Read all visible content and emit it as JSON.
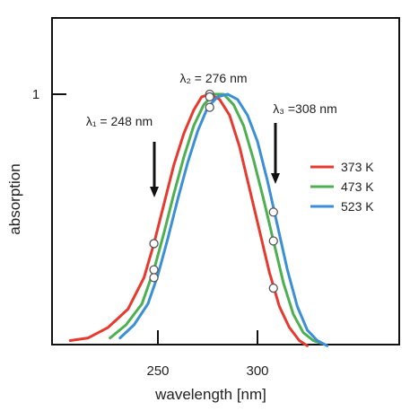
{
  "chart_data": {
    "type": "line",
    "xlabel": "wavelength [nm]",
    "ylabel": "absorption",
    "xlim": [
      200,
      360
    ],
    "ylim": [
      0,
      1.2
    ],
    "x_ticks": [
      250,
      300
    ],
    "y_ticks": [
      {
        "value": 1,
        "label": "1"
      }
    ],
    "grid": false,
    "legend_position": "right",
    "series": [
      {
        "name": "373 K",
        "color": "#e8392f",
        "points": [
          [
            206,
            0.06
          ],
          [
            215,
            0.07
          ],
          [
            225,
            0.11
          ],
          [
            235,
            0.18
          ],
          [
            243,
            0.3
          ],
          [
            248,
            0.43
          ],
          [
            253,
            0.58
          ],
          [
            258,
            0.73
          ],
          [
            263,
            0.85
          ],
          [
            268,
            0.94
          ],
          [
            272,
            0.99
          ],
          [
            276,
            1.0
          ],
          [
            281,
            0.98
          ],
          [
            286,
            0.92
          ],
          [
            291,
            0.8
          ],
          [
            296,
            0.64
          ],
          [
            301,
            0.48
          ],
          [
            306,
            0.32
          ],
          [
            311,
            0.19
          ],
          [
            316,
            0.11
          ],
          [
            321,
            0.06
          ],
          [
            325,
            0.04
          ]
        ]
      },
      {
        "name": "473 K",
        "color": "#4caf50",
        "points": [
          [
            226,
            0.07
          ],
          [
            234,
            0.12
          ],
          [
            242,
            0.2
          ],
          [
            248,
            0.33
          ],
          [
            253,
            0.47
          ],
          [
            258,
            0.62
          ],
          [
            263,
            0.76
          ],
          [
            268,
            0.88
          ],
          [
            273,
            0.96
          ],
          [
            278,
            1.0
          ],
          [
            283,
            1.0
          ],
          [
            288,
            0.96
          ],
          [
            293,
            0.88
          ],
          [
            298,
            0.75
          ],
          [
            303,
            0.6
          ],
          [
            308,
            0.44
          ],
          [
            313,
            0.28
          ],
          [
            318,
            0.16
          ],
          [
            323,
            0.09
          ],
          [
            328,
            0.06
          ],
          [
            332,
            0.05
          ]
        ]
      },
      {
        "name": "523 K",
        "color": "#3a8fd6",
        "points": [
          [
            231,
            0.07
          ],
          [
            238,
            0.12
          ],
          [
            245,
            0.2
          ],
          [
            250,
            0.31
          ],
          [
            255,
            0.45
          ],
          [
            260,
            0.6
          ],
          [
            265,
            0.74
          ],
          [
            270,
            0.86
          ],
          [
            275,
            0.95
          ],
          [
            280,
            0.99
          ],
          [
            285,
            1.0
          ],
          [
            290,
            0.98
          ],
          [
            295,
            0.92
          ],
          [
            300,
            0.82
          ],
          [
            305,
            0.67
          ],
          [
            310,
            0.5
          ],
          [
            315,
            0.33
          ],
          [
            320,
            0.19
          ],
          [
            325,
            0.1
          ],
          [
            330,
            0.06
          ],
          [
            335,
            0.04
          ]
        ]
      }
    ],
    "markers": [
      {
        "x": 248,
        "y": 0.43
      },
      {
        "x": 248,
        "y": 0.33
      },
      {
        "x": 248,
        "y": 0.3
      },
      {
        "x": 276,
        "y": 1.0
      },
      {
        "x": 276,
        "y": 0.99
      },
      {
        "x": 276,
        "y": 0.95
      },
      {
        "x": 308,
        "y": 0.55
      },
      {
        "x": 308,
        "y": 0.44
      },
      {
        "x": 308,
        "y": 0.26
      }
    ],
    "annotations": [
      {
        "label": "λ₁ = 248 nm",
        "x": 248,
        "arrow": true
      },
      {
        "label": "λ₂ = 276 nm",
        "x": 276,
        "arrow": false
      },
      {
        "label": "λ₃ =308 nm",
        "x": 308,
        "arrow": true
      }
    ]
  }
}
